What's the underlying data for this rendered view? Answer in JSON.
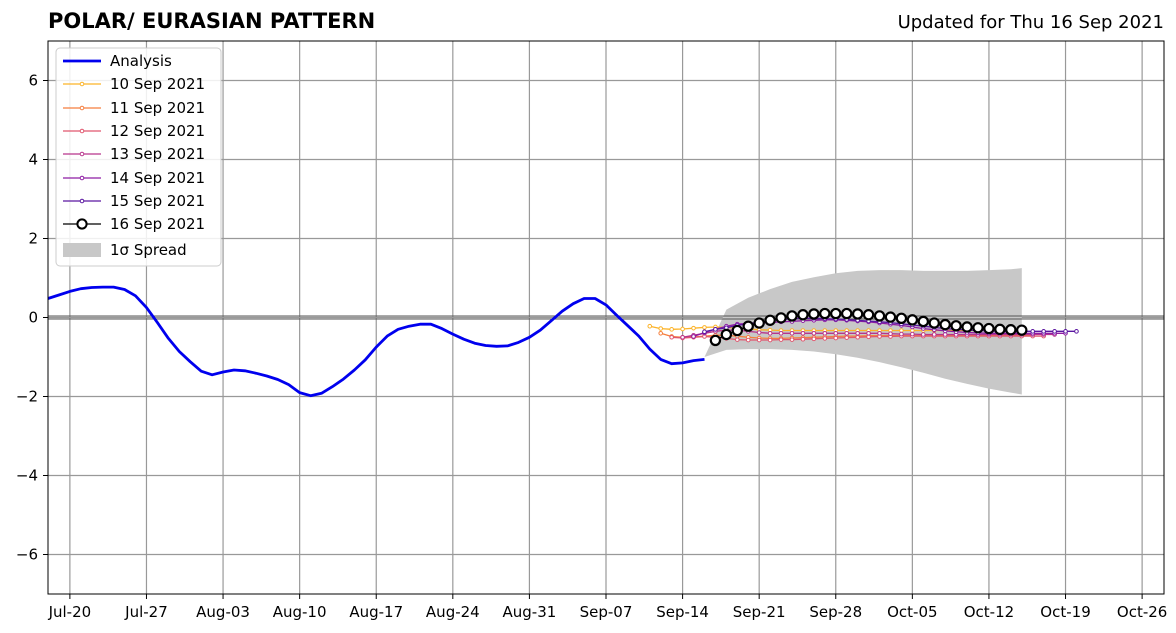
{
  "title": "POLAR/ EURASIAN  PATTERN",
  "updated": "Updated for Thu 16 Sep 2021",
  "chart_data": {
    "type": "line",
    "x_axis": {
      "type": "date",
      "range": [
        "2021-07-18",
        "2021-10-28"
      ],
      "ticks": [
        "Jul-20",
        "Jul-27",
        "Aug-03",
        "Aug-10",
        "Aug-17",
        "Aug-24",
        "Aug-31",
        "Sep-07",
        "Sep-14",
        "Sep-21",
        "Sep-28",
        "Oct-05",
        "Oct-12",
        "Oct-19",
        "Oct-26"
      ],
      "tick_dates": [
        "2021-07-20",
        "2021-07-27",
        "2021-08-03",
        "2021-08-10",
        "2021-08-17",
        "2021-08-24",
        "2021-08-31",
        "2021-09-07",
        "2021-09-14",
        "2021-09-21",
        "2021-09-28",
        "2021-10-05",
        "2021-10-12",
        "2021-10-19",
        "2021-10-26"
      ]
    },
    "y_axis": {
      "range": [
        -7,
        7
      ],
      "ticks": [
        "−6",
        "−4",
        "−2",
        "0",
        "2",
        "4",
        "6"
      ],
      "tick_values": [
        -6,
        -4,
        -2,
        0,
        2,
        4,
        6
      ]
    },
    "grid": true,
    "legend": {
      "placement": "top-left",
      "spread_label": "1σ Spread"
    },
    "analysis": {
      "name": "Analysis",
      "color": "#0000ee",
      "dates": [
        "2021-07-18",
        "2021-07-19",
        "2021-07-20",
        "2021-07-21",
        "2021-07-22",
        "2021-07-23",
        "2021-07-24",
        "2021-07-25",
        "2021-07-26",
        "2021-07-27",
        "2021-07-28",
        "2021-07-29",
        "2021-07-30",
        "2021-07-31",
        "2021-08-01",
        "2021-08-02",
        "2021-08-03",
        "2021-08-04",
        "2021-08-05",
        "2021-08-06",
        "2021-08-07",
        "2021-08-08",
        "2021-08-09",
        "2021-08-10",
        "2021-08-11",
        "2021-08-12",
        "2021-08-13",
        "2021-08-14",
        "2021-08-15",
        "2021-08-16",
        "2021-08-17",
        "2021-08-18",
        "2021-08-19",
        "2021-08-20",
        "2021-08-21",
        "2021-08-22",
        "2021-08-23",
        "2021-08-24",
        "2021-08-25",
        "2021-08-26",
        "2021-08-27",
        "2021-08-28",
        "2021-08-29",
        "2021-08-30",
        "2021-08-31",
        "2021-09-01",
        "2021-09-02",
        "2021-09-03",
        "2021-09-04",
        "2021-09-05",
        "2021-09-06",
        "2021-09-07",
        "2021-09-08",
        "2021-09-09",
        "2021-09-10",
        "2021-09-11",
        "2021-09-12",
        "2021-09-13",
        "2021-09-14",
        "2021-09-15",
        "2021-09-16"
      ],
      "values": [
        0.48,
        0.57,
        0.66,
        0.73,
        0.76,
        0.77,
        0.77,
        0.71,
        0.55,
        0.25,
        -0.13,
        -0.53,
        -0.86,
        -1.12,
        -1.36,
        -1.45,
        -1.38,
        -1.33,
        -1.35,
        -1.41,
        -1.48,
        -1.57,
        -1.7,
        -1.9,
        -1.98,
        -1.92,
        -1.75,
        -1.56,
        -1.33,
        -1.07,
        -0.75,
        -0.47,
        -0.3,
        -0.22,
        -0.17,
        -0.17,
        -0.28,
        -0.42,
        -0.55,
        -0.65,
        -0.71,
        -0.73,
        -0.72,
        -0.63,
        -0.5,
        -0.32,
        -0.08,
        0.16,
        0.35,
        0.48,
        0.48,
        0.32,
        0.05,
        -0.21,
        -0.47,
        -0.8,
        -1.06,
        -1.17,
        -1.15,
        -1.09,
        -1.06
      ]
    },
    "spread": {
      "dates": [
        "2021-09-16",
        "2021-09-18",
        "2021-09-20",
        "2021-09-22",
        "2021-09-24",
        "2021-09-26",
        "2021-09-28",
        "2021-09-30",
        "2021-10-02",
        "2021-10-04",
        "2021-10-06",
        "2021-10-08",
        "2021-10-10",
        "2021-10-12",
        "2021-10-14",
        "2021-10-15"
      ],
      "upper": [
        -1.0,
        0.2,
        0.5,
        0.72,
        0.9,
        1.02,
        1.12,
        1.18,
        1.2,
        1.2,
        1.18,
        1.18,
        1.18,
        1.2,
        1.22,
        1.25
      ],
      "lower": [
        -1.0,
        -0.82,
        -0.8,
        -0.8,
        -0.82,
        -0.86,
        -0.93,
        -1.02,
        -1.13,
        -1.26,
        -1.4,
        -1.55,
        -1.68,
        -1.8,
        -1.9,
        -1.95
      ],
      "color": "#c8c8c8"
    },
    "series": [
      {
        "name": "10 Sep 2021",
        "color": "#fcb328",
        "start": "2021-09-11",
        "values": [
          -0.22,
          -0.28,
          -0.3,
          -0.29,
          -0.27,
          -0.25,
          -0.24,
          -0.25,
          -0.27,
          -0.29,
          -0.31,
          -0.32,
          -0.33,
          -0.33,
          -0.33,
          -0.33,
          -0.33,
          -0.33,
          -0.33,
          -0.33,
          -0.33,
          -0.33,
          -0.33,
          -0.33,
          -0.33,
          -0.33,
          -0.33,
          -0.33,
          -0.33,
          -0.33,
          -0.33,
          -0.33,
          -0.33,
          -0.33,
          -0.33
        ]
      },
      {
        "name": "11 Sep 2021",
        "color": "#f57e3e",
        "start": "2021-09-12",
        "values": [
          -0.4,
          -0.48,
          -0.5,
          -0.49,
          -0.47,
          -0.45,
          -0.45,
          -0.47,
          -0.5,
          -0.52,
          -0.53,
          -0.53,
          -0.52,
          -0.51,
          -0.5,
          -0.49,
          -0.48,
          -0.47,
          -0.47,
          -0.46,
          -0.46,
          -0.46,
          -0.46,
          -0.46,
          -0.46,
          -0.46,
          -0.46,
          -0.46,
          -0.46,
          -0.46,
          -0.46,
          -0.46,
          -0.46,
          -0.46,
          -0.46
        ]
      },
      {
        "name": "12 Sep 2021",
        "color": "#e0566e",
        "start": "2021-09-13",
        "values": [
          -0.5,
          -0.52,
          -0.5,
          -0.48,
          -0.5,
          -0.53,
          -0.56,
          -0.57,
          -0.57,
          -0.57,
          -0.56,
          -0.56,
          -0.55,
          -0.54,
          -0.53,
          -0.52,
          -0.51,
          -0.5,
          -0.49,
          -0.48,
          -0.48,
          -0.47,
          -0.47,
          -0.47,
          -0.47,
          -0.47,
          -0.47,
          -0.47,
          -0.47,
          -0.47,
          -0.47,
          -0.47,
          -0.47,
          -0.47,
          -0.47
        ]
      },
      {
        "name": "13 Sep 2021",
        "color": "#b8358c",
        "start": "2021-09-14",
        "values": [
          -0.5,
          -0.45,
          -0.4,
          -0.35,
          -0.32,
          -0.32,
          -0.35,
          -0.38,
          -0.4,
          -0.4,
          -0.4,
          -0.4,
          -0.4,
          -0.4,
          -0.4,
          -0.4,
          -0.4,
          -0.4,
          -0.4,
          -0.41,
          -0.42,
          -0.42,
          -0.43,
          -0.43,
          -0.43,
          -0.43,
          -0.43,
          -0.43,
          -0.43,
          -0.43,
          -0.43,
          -0.43,
          -0.43,
          -0.43,
          -0.43
        ]
      },
      {
        "name": "14 Sep 2021",
        "color": "#8e1ca3",
        "start": "2021-09-15",
        "values": [
          -0.48,
          -0.38,
          -0.3,
          -0.22,
          -0.17,
          -0.15,
          -0.14,
          -0.13,
          -0.11,
          -0.1,
          -0.08,
          -0.07,
          -0.06,
          -0.06,
          -0.07,
          -0.09,
          -0.11,
          -0.14,
          -0.17,
          -0.2,
          -0.24,
          -0.28,
          -0.31,
          -0.34,
          -0.36,
          -0.38,
          -0.39,
          -0.4,
          -0.4,
          -0.4,
          -0.4,
          -0.4,
          -0.4,
          -0.4,
          -0.4
        ]
      },
      {
        "name": "15 Sep 2021",
        "color": "#5a16a0",
        "start": "2021-09-16",
        "values": [
          -0.36,
          -0.3,
          -0.26,
          -0.2,
          -0.16,
          -0.12,
          -0.08,
          -0.05,
          -0.03,
          -0.02,
          -0.02,
          -0.03,
          -0.04,
          -0.05,
          -0.07,
          -0.09,
          -0.11,
          -0.13,
          -0.16,
          -0.19,
          -0.22,
          -0.25,
          -0.28,
          -0.3,
          -0.32,
          -0.33,
          -0.34,
          -0.35,
          -0.35,
          -0.35,
          -0.35,
          -0.35,
          -0.35,
          -0.35,
          -0.35
        ]
      },
      {
        "name": "16 Sep 2021",
        "color": "#000000",
        "start": "2021-09-17",
        "big_markers": true,
        "values": [
          -0.58,
          -0.43,
          -0.33,
          -0.22,
          -0.14,
          -0.07,
          -0.01,
          0.04,
          0.07,
          0.09,
          0.1,
          0.1,
          0.1,
          0.09,
          0.07,
          0.04,
          0.01,
          -0.02,
          -0.06,
          -0.1,
          -0.14,
          -0.18,
          -0.21,
          -0.24,
          -0.26,
          -0.28,
          -0.3,
          -0.31,
          -0.32
        ]
      }
    ]
  }
}
